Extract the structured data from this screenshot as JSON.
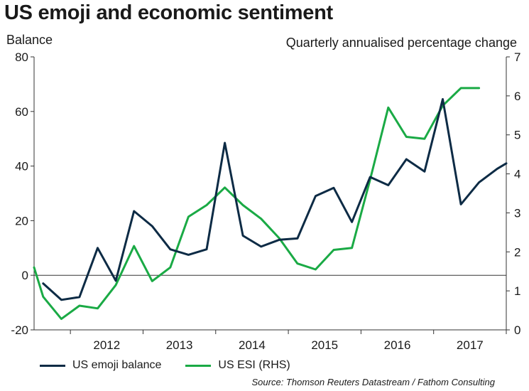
{
  "chart_data": {
    "type": "line",
    "title": "US emoji and economic sentiment",
    "ylabel_left": "Balance",
    "ylabel_right": "Quarterly annualised percentage change",
    "source": "Source: Thomson Reuters Datastream / Fathom Consulting",
    "ylim_left": [
      -20,
      80
    ],
    "yticks_left": [
      "-20",
      "0",
      "20",
      "40",
      "60",
      "80"
    ],
    "ylim_right": [
      0,
      7
    ],
    "yticks_right": [
      "0",
      "1",
      "2",
      "3",
      "4",
      "5",
      "6",
      "7"
    ],
    "x_range": [
      2011.5,
      2018.0
    ],
    "xticks": [
      "2012",
      "2013",
      "2014",
      "2015",
      "2016",
      "2017"
    ],
    "grid": false,
    "legend_position": "bottom",
    "series": [
      {
        "name": "US emoji balance",
        "axis": "left",
        "color": "#0d2b45",
        "x": [
          2011.625,
          2011.875,
          2012.125,
          2012.375,
          2012.625,
          2012.875,
          2013.125,
          2013.375,
          2013.625,
          2013.875,
          2014.125,
          2014.375,
          2014.625,
          2014.875,
          2015.125,
          2015.375,
          2015.625,
          2015.875,
          2016.125,
          2016.375,
          2016.625,
          2016.875,
          2017.125,
          2017.375,
          2017.625,
          2017.875,
          2018.0
        ],
        "values": [
          -3,
          -9,
          -8,
          10,
          -2,
          23.5,
          18,
          9.5,
          7.5,
          9.5,
          48.5,
          14.5,
          10.5,
          13,
          13.5,
          29,
          32,
          19.5,
          36,
          33,
          42.5,
          38,
          64.5,
          26,
          34,
          39,
          41
        ]
      },
      {
        "name": "US ESI (RHS)",
        "axis": "right",
        "color": "#1aaa45",
        "x": [
          2011.5,
          2011.625,
          2011.875,
          2012.125,
          2012.375,
          2012.625,
          2012.875,
          2013.125,
          2013.375,
          2013.625,
          2013.875,
          2014.125,
          2014.375,
          2014.625,
          2014.875,
          2015.125,
          2015.375,
          2015.625,
          2015.875,
          2016.125,
          2016.375,
          2016.625,
          2016.875,
          2017.125,
          2017.375,
          2017.625
        ],
        "values": [
          1.6,
          0.85,
          0.28,
          0.62,
          0.55,
          1.15,
          2.15,
          1.25,
          1.6,
          2.9,
          3.2,
          3.65,
          3.2,
          2.85,
          2.35,
          1.7,
          1.55,
          2.05,
          2.1,
          3.85,
          5.7,
          4.95,
          4.9,
          5.75,
          6.2,
          6.2
        ]
      }
    ]
  }
}
